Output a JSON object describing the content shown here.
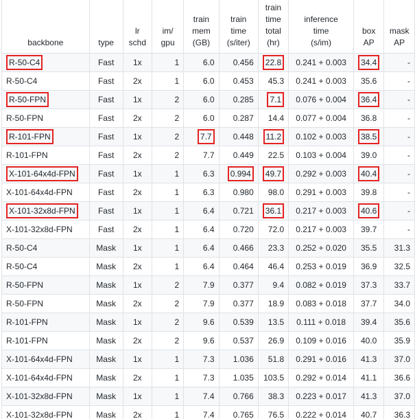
{
  "headers": [
    "backbone",
    "type",
    [
      "lr",
      "schd"
    ],
    [
      "im/",
      "gpu"
    ],
    [
      "train",
      "mem",
      "(GB)"
    ],
    [
      "train",
      "time",
      "(s/iter)"
    ],
    [
      "train",
      "time",
      "total",
      "(hr)"
    ],
    [
      "inference",
      "time",
      "(s/im)"
    ],
    [
      "box",
      "AP"
    ],
    [
      "mask",
      "AP"
    ]
  ],
  "highlight_color": "#e52222",
  "rows": [
    [
      "R-50-C4",
      "Fast",
      "1x",
      "1",
      "6.0",
      "0.456",
      "22.8",
      "0.241 + 0.003",
      "34.4",
      "-"
    ],
    [
      "R-50-C4",
      "Fast",
      "2x",
      "1",
      "6.0",
      "0.453",
      "45.3",
      "0.241 + 0.003",
      "35.6",
      "-"
    ],
    [
      "R-50-FPN",
      "Fast",
      "1x",
      "2",
      "6.0",
      "0.285",
      "7.1",
      "0.076 + 0.004",
      "36.4",
      "-"
    ],
    [
      "R-50-FPN",
      "Fast",
      "2x",
      "2",
      "6.0",
      "0.287",
      "14.4",
      "0.077 + 0.004",
      "36.8",
      "-"
    ],
    [
      "R-101-FPN",
      "Fast",
      "1x",
      "2",
      "7.7",
      "0.448",
      "11.2",
      "0.102 + 0.003",
      "38.5",
      "-"
    ],
    [
      "R-101-FPN",
      "Fast",
      "2x",
      "2",
      "7.7",
      "0.449",
      "22.5",
      "0.103 + 0.004",
      "39.0",
      "-"
    ],
    [
      "X-101-64x4d-FPN",
      "Fast",
      "1x",
      "1",
      "6.3",
      "0.994",
      "49.7",
      "0.292 + 0.003",
      "40.4",
      "-"
    ],
    [
      "X-101-64x4d-FPN",
      "Fast",
      "2x",
      "1",
      "6.3",
      "0.980",
      "98.0",
      "0.291 + 0.003",
      "39.8",
      "-"
    ],
    [
      "X-101-32x8d-FPN",
      "Fast",
      "1x",
      "1",
      "6.4",
      "0.721",
      "36.1",
      "0.217 + 0.003",
      "40.6",
      "-"
    ],
    [
      "X-101-32x8d-FPN",
      "Fast",
      "2x",
      "1",
      "6.4",
      "0.720",
      "72.0",
      "0.217 + 0.003",
      "39.7",
      "-"
    ],
    [
      "R-50-C4",
      "Mask",
      "1x",
      "1",
      "6.4",
      "0.466",
      "23.3",
      "0.252 + 0.020",
      "35.5",
      "31.3"
    ],
    [
      "R-50-C4",
      "Mask",
      "2x",
      "1",
      "6.4",
      "0.464",
      "46.4",
      "0.253 + 0.019",
      "36.9",
      "32.5"
    ],
    [
      "R-50-FPN",
      "Mask",
      "1x",
      "2",
      "7.9",
      "0.377",
      "9.4",
      "0.082 + 0.019",
      "37.3",
      "33.7"
    ],
    [
      "R-50-FPN",
      "Mask",
      "2x",
      "2",
      "7.9",
      "0.377",
      "18.9",
      "0.083 + 0.018",
      "37.7",
      "34.0"
    ],
    [
      "R-101-FPN",
      "Mask",
      "1x",
      "2",
      "9.6",
      "0.539",
      "13.5",
      "0.111 + 0.018",
      "39.4",
      "35.6"
    ],
    [
      "R-101-FPN",
      "Mask",
      "2x",
      "2",
      "9.6",
      "0.537",
      "26.9",
      "0.109 + 0.016",
      "40.0",
      "35.9"
    ],
    [
      "X-101-64x4d-FPN",
      "Mask",
      "1x",
      "1",
      "7.3",
      "1.036",
      "51.8",
      "0.291 + 0.016",
      "41.3",
      "37.0"
    ],
    [
      "X-101-64x4d-FPN",
      "Mask",
      "2x",
      "1",
      "7.3",
      "1.035",
      "103.5",
      "0.292 + 0.014",
      "41.1",
      "36.6"
    ],
    [
      "X-101-32x8d-FPN",
      "Mask",
      "1x",
      "1",
      "7.4",
      "0.766",
      "38.3",
      "0.223 + 0.017",
      "41.3",
      "37.0"
    ],
    [
      "X-101-32x8d-FPN",
      "Mask",
      "2x",
      "1",
      "7.4",
      "0.765",
      "76.5",
      "0.222 + 0.014",
      "40.7",
      "36.3"
    ]
  ],
  "highlighted_cells": [
    [
      0,
      0
    ],
    [
      0,
      6
    ],
    [
      0,
      8
    ],
    [
      2,
      0
    ],
    [
      2,
      6
    ],
    [
      2,
      8
    ],
    [
      4,
      0
    ],
    [
      4,
      4
    ],
    [
      4,
      6
    ],
    [
      4,
      8
    ],
    [
      6,
      0
    ],
    [
      6,
      5
    ],
    [
      6,
      6
    ],
    [
      6,
      8
    ],
    [
      8,
      0
    ],
    [
      8,
      6
    ],
    [
      8,
      8
    ]
  ]
}
